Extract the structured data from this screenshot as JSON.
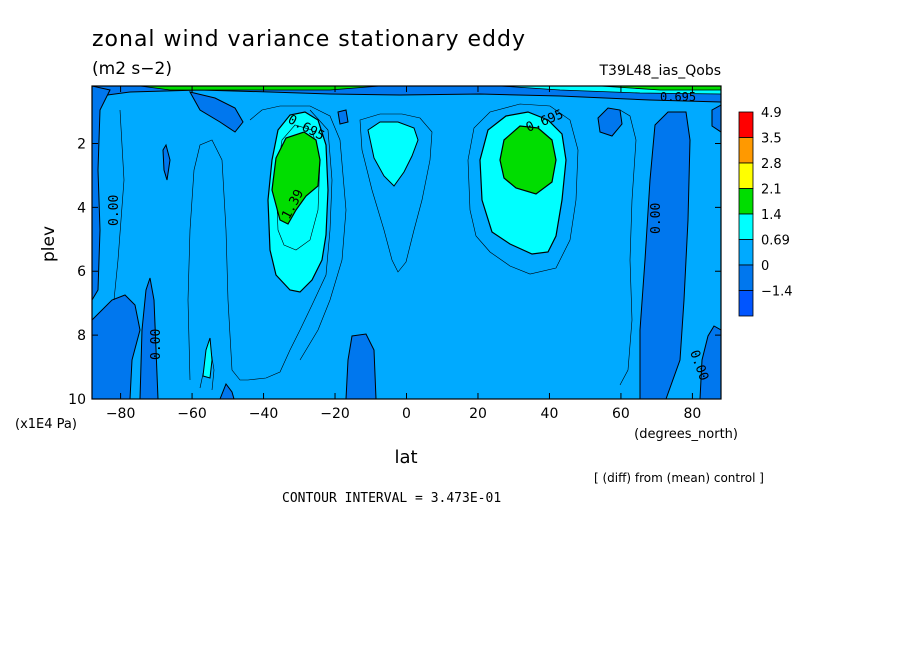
{
  "chart_data": {
    "type": "heatmap",
    "title": "zonal wind variance stationary eddy",
    "units": "(m2 s−2)",
    "run_label": "T39L48_ias_Qobs",
    "xlabel": "lat",
    "x_units": "(degrees_north)",
    "ylabel": "plev",
    "y_units": "(x1E4 Pa)",
    "xlim": [
      -88,
      88
    ],
    "ylim": [
      10,
      0.2
    ],
    "x_ticks": [
      -80,
      -60,
      -40,
      -20,
      0,
      20,
      40,
      60,
      80
    ],
    "x_tick_labels": [
      "−80",
      "−60",
      "−40",
      "−20",
      "0",
      "20",
      "40",
      "60",
      "80"
    ],
    "y_ticks": [
      2,
      4,
      6,
      8,
      10
    ],
    "y_tick_labels": [
      "2",
      "4",
      "6",
      "8",
      "10"
    ],
    "colorbar": {
      "levels": [
        "4.9",
        "3.5",
        "2.8",
        "2.1",
        "1.4",
        "0.69",
        "0",
        "−1.4"
      ],
      "colors": [
        "#ff0000",
        "#ff9900",
        "#ffff00",
        "#00dd00",
        "#00ffff",
        "#00aaff",
        "#0077ee",
        "#0055ff"
      ]
    },
    "contour_labels": [
      "0.695",
      "0.695",
      "1.39",
      "0.00",
      "0.00",
      "0.00",
      "0.00",
      "0.695"
    ],
    "footer_note": "[ (diff) from (mean) control ]",
    "contour_interval": "CONTOUR INTERVAL = 3.473E-01"
  }
}
